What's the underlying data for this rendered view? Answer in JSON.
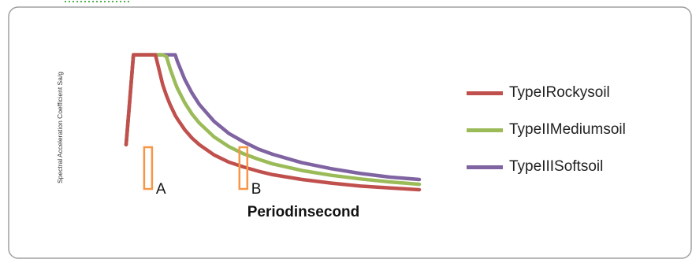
{
  "chart_data": {
    "type": "line",
    "title": "",
    "xlabel": "Periodinsecond",
    "ylabel": "Spectral Acceleration Coefficient Sa/g",
    "grid": false,
    "legend_placement": "right",
    "xlim": [
      0,
      4
    ],
    "ylim": [
      0,
      2.6
    ],
    "plateau": 2.5,
    "x": [
      0,
      0.05,
      0.1,
      0.2,
      0.3,
      0.4,
      0.5,
      0.55,
      0.6,
      0.67,
      0.7,
      0.8,
      0.9,
      1.0,
      1.2,
      1.4,
      1.6,
      1.8,
      2.0,
      2.4,
      2.8,
      3.2,
      3.6,
      4.0
    ],
    "series": [
      {
        "name": "TypeIRockysoil",
        "color": "#c0504d",
        "values": [
          1.0,
          1.75,
          2.5,
          2.5,
          2.5,
          2.5,
          2.0,
          1.82,
          1.67,
          1.49,
          1.43,
          1.25,
          1.11,
          1.0,
          0.83,
          0.71,
          0.63,
          0.56,
          0.5,
          0.42,
          0.36,
          0.31,
          0.28,
          0.25
        ]
      },
      {
        "name": "TypeIIMediumsoil",
        "color": "#9bbb59",
        "values": [
          1.0,
          1.75,
          2.5,
          2.5,
          2.5,
          2.5,
          2.5,
          2.47,
          2.27,
          2.03,
          1.94,
          1.7,
          1.51,
          1.36,
          1.13,
          0.97,
          0.85,
          0.76,
          0.68,
          0.57,
          0.49,
          0.43,
          0.38,
          0.34
        ]
      },
      {
        "name": "TypeIIISoftsoil",
        "color": "#8064a2",
        "values": [
          1.0,
          1.75,
          2.5,
          2.5,
          2.5,
          2.5,
          2.5,
          2.5,
          2.5,
          2.5,
          2.39,
          2.09,
          1.86,
          1.67,
          1.39,
          1.19,
          1.05,
          0.93,
          0.84,
          0.7,
          0.6,
          0.52,
          0.46,
          0.42
        ]
      }
    ],
    "annotations": [
      {
        "label": "A",
        "x": 0.3
      },
      {
        "label": "B",
        "x": 1.6
      }
    ],
    "marker_color": "#f79646",
    "frame_color": "#a0a0a0"
  }
}
